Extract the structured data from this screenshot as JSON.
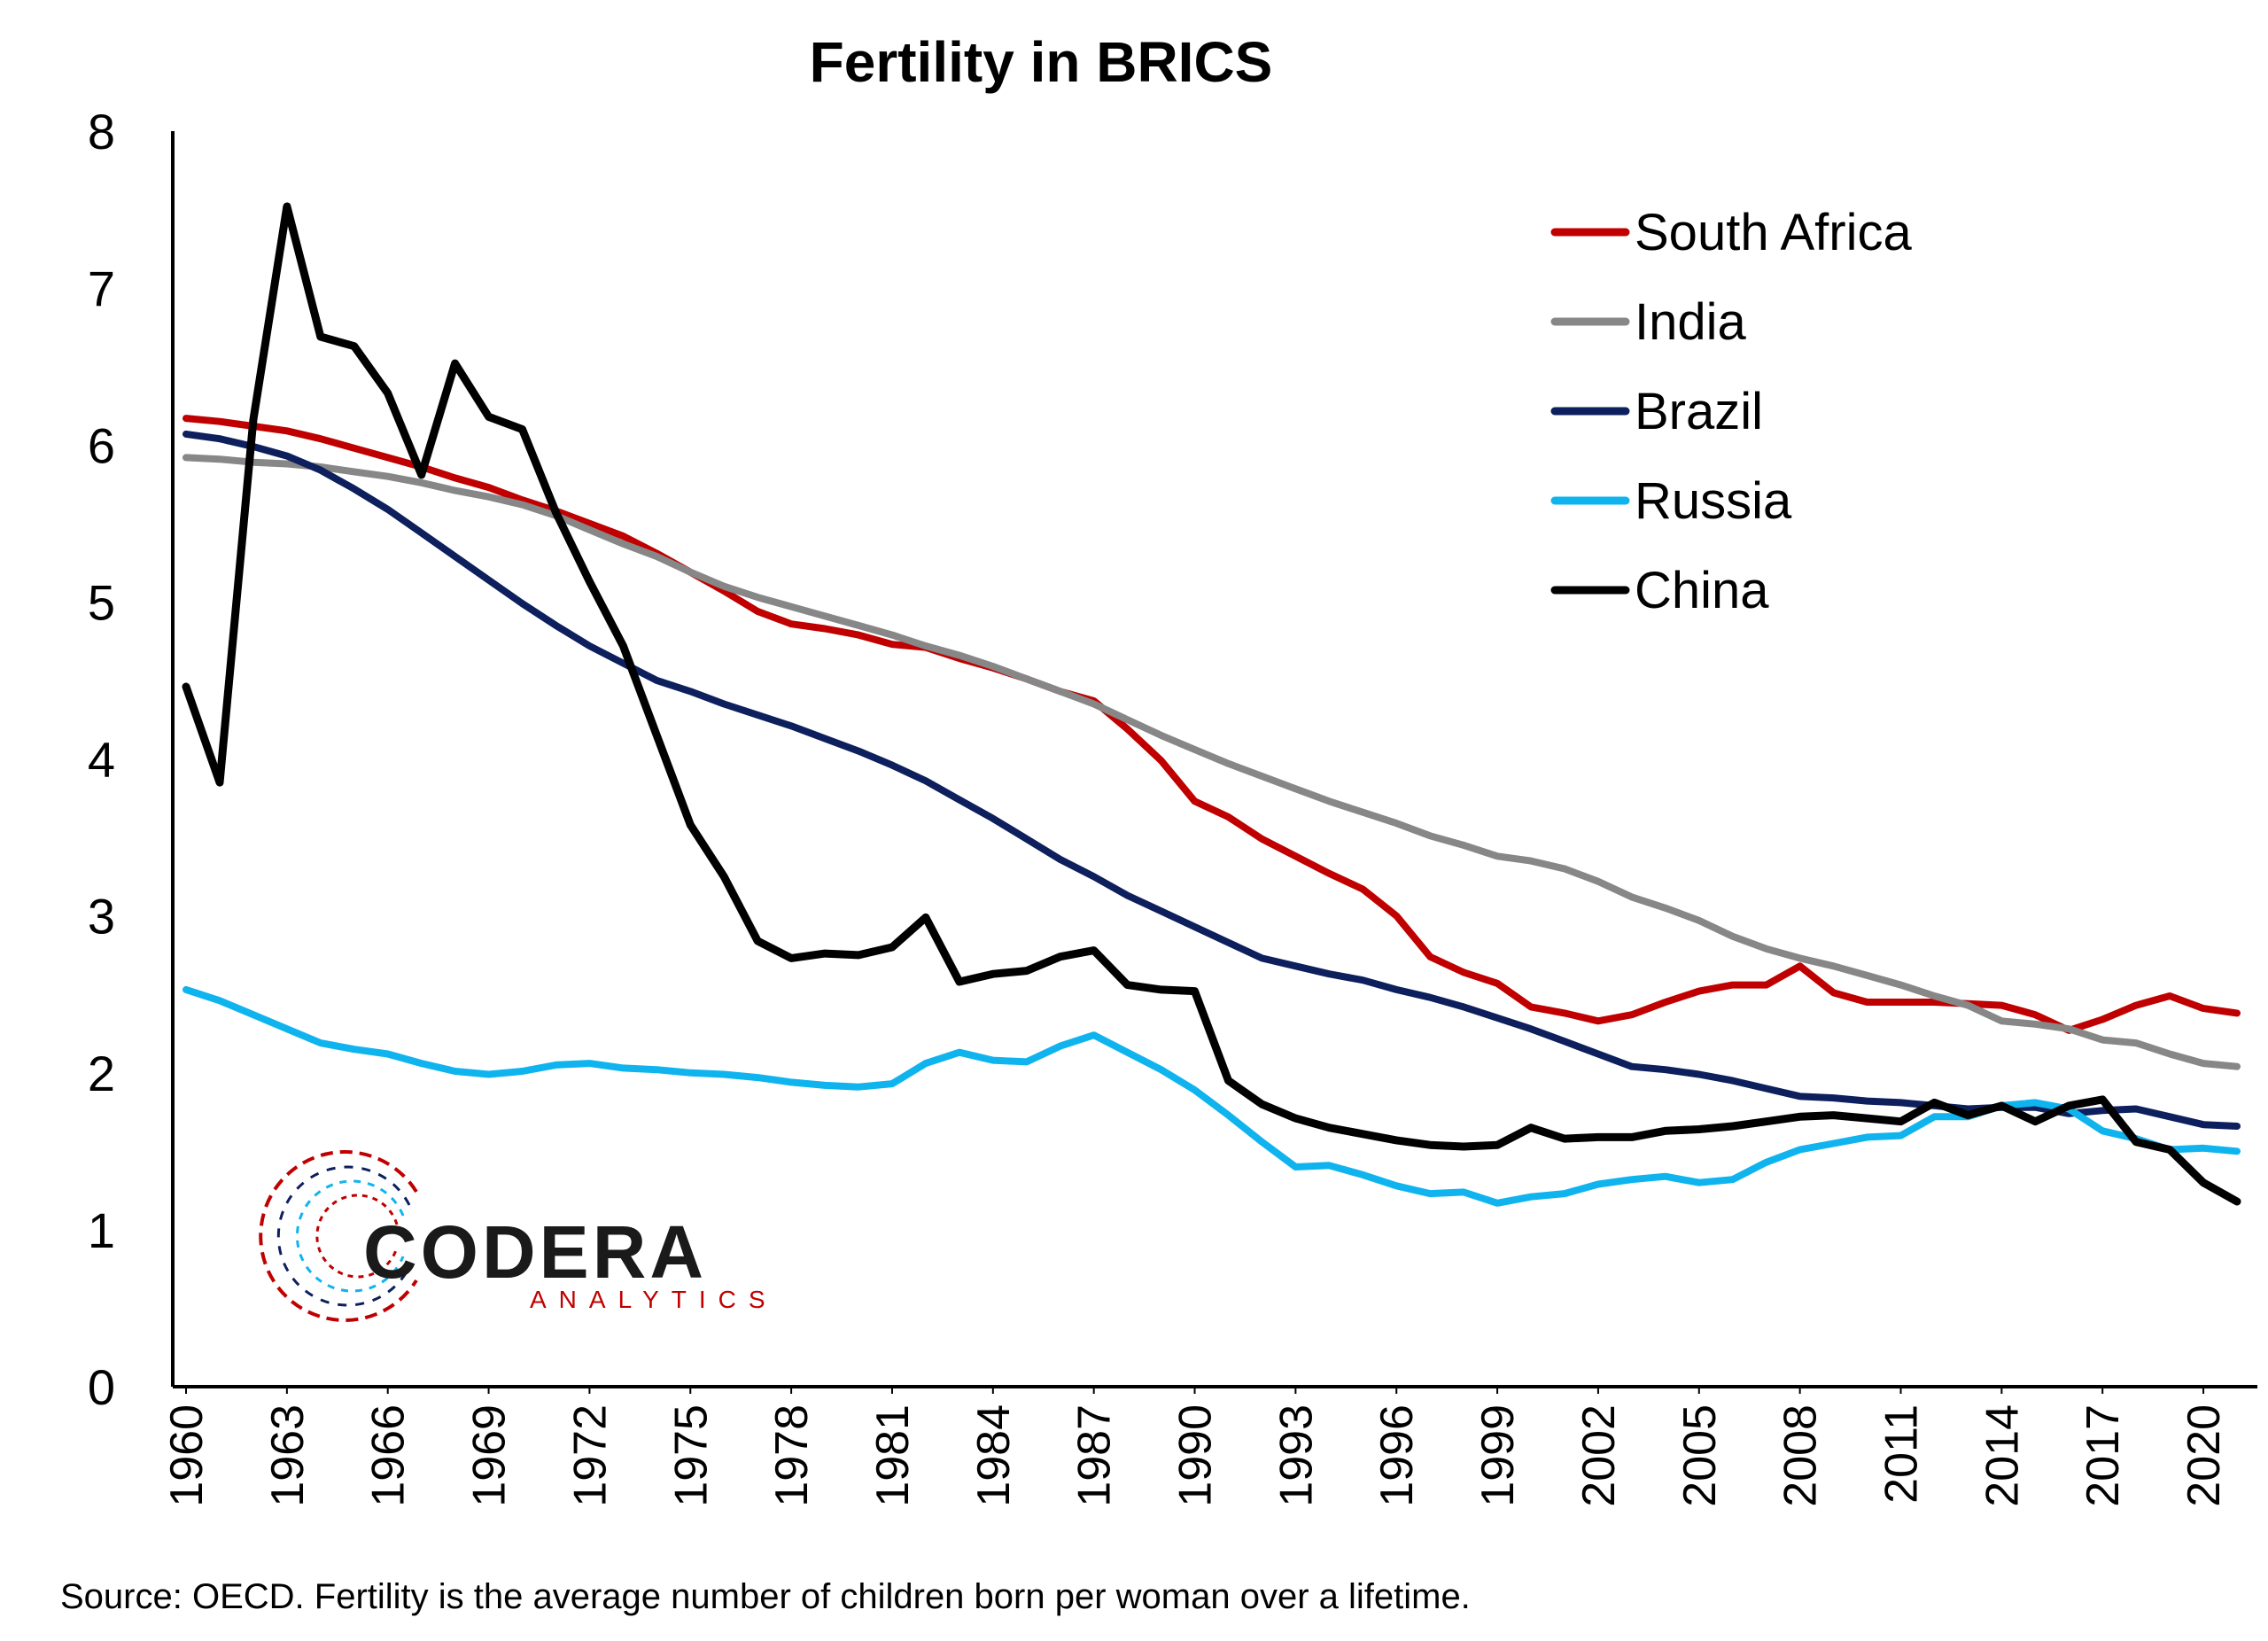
{
  "chart_data": {
    "type": "line",
    "title": "Fertility in BRICS",
    "xlabel": "",
    "ylabel": "",
    "ylim": [
      0,
      8
    ],
    "yticks": [
      "0",
      "1",
      "2",
      "3",
      "4",
      "5",
      "6",
      "7",
      "8"
    ],
    "xlim": [
      1960,
      2021
    ],
    "xticks": [
      "1960",
      "1963",
      "1966",
      "1969",
      "1972",
      "1975",
      "1978",
      "1981",
      "1984",
      "1987",
      "1990",
      "1993",
      "1996",
      "1999",
      "2002",
      "2005",
      "2008",
      "2011",
      "2014",
      "2017",
      "2020"
    ],
    "grid": false,
    "legend_position": "top-right",
    "x": [
      1960,
      1961,
      1962,
      1963,
      1964,
      1965,
      1966,
      1967,
      1968,
      1969,
      1970,
      1971,
      1972,
      1973,
      1974,
      1975,
      1976,
      1977,
      1978,
      1979,
      1980,
      1981,
      1982,
      1983,
      1984,
      1985,
      1986,
      1987,
      1988,
      1989,
      1990,
      1991,
      1992,
      1993,
      1994,
      1995,
      1996,
      1997,
      1998,
      1999,
      2000,
      2001,
      2002,
      2003,
      2004,
      2005,
      2006,
      2007,
      2008,
      2009,
      2010,
      2011,
      2012,
      2013,
      2014,
      2015,
      2016,
      2017,
      2018,
      2019,
      2020,
      2021
    ],
    "series": [
      {
        "name": "South Africa",
        "color": "#c00000",
        "values": [
          6.17,
          6.15,
          6.12,
          6.09,
          6.04,
          5.98,
          5.92,
          5.86,
          5.79,
          5.73,
          5.65,
          5.58,
          5.5,
          5.42,
          5.31,
          5.19,
          5.07,
          4.94,
          4.86,
          4.83,
          4.79,
          4.73,
          4.71,
          4.64,
          4.58,
          4.51,
          4.43,
          4.37,
          4.19,
          3.99,
          3.73,
          3.63,
          3.49,
          3.38,
          3.27,
          3.17,
          3.0,
          2.74,
          2.64,
          2.57,
          2.42,
          2.38,
          2.33,
          2.37,
          2.45,
          2.52,
          2.56,
          2.56,
          2.68,
          2.51,
          2.45,
          2.45,
          2.45,
          2.44,
          2.43,
          2.37,
          2.27,
          2.34,
          2.43,
          2.49,
          2.41,
          2.38
        ]
      },
      {
        "name": "India",
        "color": "#878787",
        "values": [
          5.92,
          5.91,
          5.89,
          5.88,
          5.86,
          5.83,
          5.8,
          5.76,
          5.71,
          5.67,
          5.62,
          5.55,
          5.46,
          5.37,
          5.29,
          5.19,
          5.1,
          5.03,
          4.97,
          4.91,
          4.85,
          4.79,
          4.72,
          4.66,
          4.59,
          4.51,
          4.43,
          4.35,
          4.25,
          4.15,
          4.06,
          3.97,
          3.89,
          3.81,
          3.73,
          3.66,
          3.59,
          3.51,
          3.45,
          3.38,
          3.35,
          3.3,
          3.22,
          3.12,
          3.05,
          2.97,
          2.87,
          2.79,
          2.73,
          2.68,
          2.62,
          2.56,
          2.49,
          2.43,
          2.33,
          2.31,
          2.28,
          2.21,
          2.19,
          2.12,
          2.06,
          2.04
        ]
      },
      {
        "name": "Brazil",
        "color": "#0d1f5c",
        "values": [
          6.07,
          6.04,
          5.99,
          5.93,
          5.84,
          5.72,
          5.59,
          5.44,
          5.29,
          5.14,
          4.99,
          4.85,
          4.72,
          4.61,
          4.5,
          4.43,
          4.35,
          4.28,
          4.21,
          4.13,
          4.05,
          3.96,
          3.86,
          3.74,
          3.62,
          3.49,
          3.36,
          3.25,
          3.13,
          3.03,
          2.93,
          2.83,
          2.73,
          2.68,
          2.63,
          2.59,
          2.53,
          2.48,
          2.42,
          2.35,
          2.28,
          2.2,
          2.12,
          2.04,
          2.02,
          1.99,
          1.95,
          1.9,
          1.85,
          1.84,
          1.82,
          1.81,
          1.79,
          1.77,
          1.78,
          1.78,
          1.74,
          1.76,
          1.77,
          1.72,
          1.67,
          1.66
        ]
      },
      {
        "name": "Russia",
        "color": "#0fb4ee",
        "values": [
          2.53,
          2.46,
          2.37,
          2.28,
          2.19,
          2.15,
          2.12,
          2.06,
          2.01,
          1.99,
          2.01,
          2.05,
          2.06,
          2.03,
          2.02,
          2.0,
          1.99,
          1.97,
          1.94,
          1.92,
          1.91,
          1.93,
          2.06,
          2.13,
          2.08,
          2.07,
          2.17,
          2.24,
          2.13,
          2.02,
          1.89,
          1.73,
          1.56,
          1.4,
          1.41,
          1.35,
          1.28,
          1.23,
          1.24,
          1.17,
          1.21,
          1.23,
          1.29,
          1.32,
          1.34,
          1.3,
          1.32,
          1.43,
          1.51,
          1.55,
          1.59,
          1.6,
          1.72,
          1.72,
          1.79,
          1.81,
          1.77,
          1.63,
          1.58,
          1.51,
          1.52,
          1.5
        ]
      },
      {
        "name": "China",
        "color": "#000000",
        "values": [
          4.46,
          3.85,
          6.16,
          7.52,
          6.69,
          6.63,
          6.33,
          5.81,
          6.52,
          6.18,
          6.1,
          5.57,
          5.13,
          4.72,
          4.15,
          3.58,
          3.25,
          2.84,
          2.73,
          2.76,
          2.75,
          2.8,
          2.99,
          2.58,
          2.63,
          2.65,
          2.74,
          2.78,
          2.56,
          2.53,
          2.52,
          1.95,
          1.8,
          1.71,
          1.65,
          1.61,
          1.57,
          1.54,
          1.53,
          1.54,
          1.65,
          1.58,
          1.59,
          1.59,
          1.63,
          1.64,
          1.66,
          1.69,
          1.72,
          1.73,
          1.71,
          1.69,
          1.81,
          1.73,
          1.79,
          1.69,
          1.79,
          1.83,
          1.56,
          1.51,
          1.3,
          1.18
        ]
      }
    ]
  },
  "source": "Source: OECD. Fertility is the average number of children born per woman over a lifetime.",
  "logo": {
    "word": "CODERA",
    "sub": "ANALYTICS",
    "colors": [
      "#c00000",
      "#0d1f5c",
      "#0fb4ee"
    ]
  }
}
